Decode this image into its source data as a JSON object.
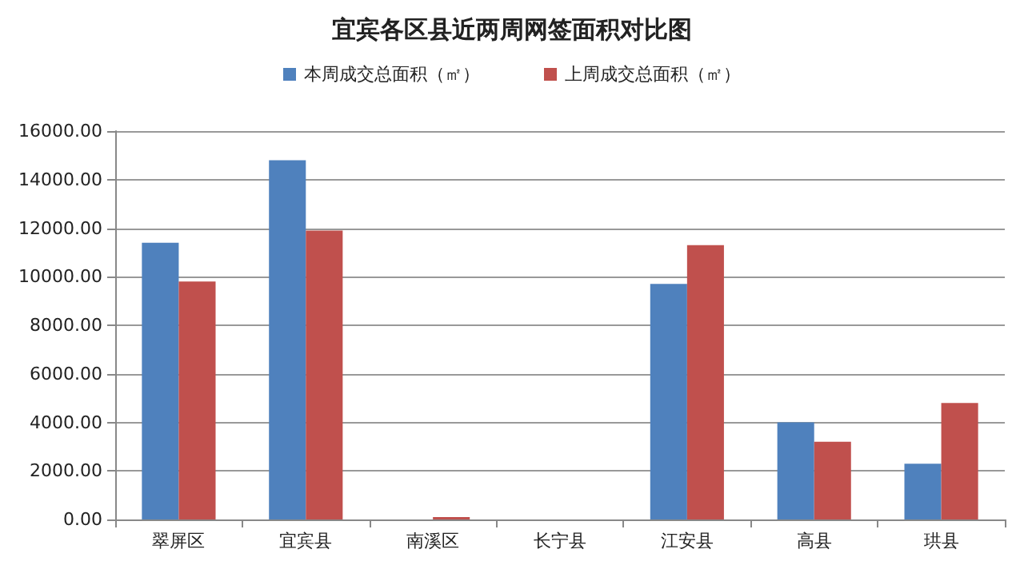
{
  "chart_data": {
    "type": "bar",
    "title": "宜宾各区县近两周网签面积对比图",
    "categories": [
      "翠屏区",
      "宜宾县",
      "南溪区",
      "长宁县",
      "江安县",
      "高县",
      "珙县"
    ],
    "series": [
      {
        "name": "本周成交总面积（㎡）",
        "color": "#4f81bd",
        "values": [
          11400,
          14800,
          0,
          0,
          9700,
          4000,
          2300
        ]
      },
      {
        "name": "上周成交总面积（㎡）",
        "color": "#c0504d",
        "values": [
          9800,
          11900,
          100,
          0,
          11300,
          3200,
          4800
        ]
      }
    ],
    "ylim": [
      0,
      16000
    ],
    "yticks": [
      {
        "value": 0,
        "label": "0.00"
      },
      {
        "value": 2000,
        "label": "2000.00"
      },
      {
        "value": 4000,
        "label": "4000.00"
      },
      {
        "value": 6000,
        "label": "6000.00"
      },
      {
        "value": 8000,
        "label": "8000.00"
      },
      {
        "value": 10000,
        "label": "10000.00"
      },
      {
        "value": 12000,
        "label": "12000.00"
      },
      {
        "value": 14000,
        "label": "14000.00"
      },
      {
        "value": 16000,
        "label": "16000.00"
      }
    ],
    "grid": "y",
    "legend": "top"
  }
}
